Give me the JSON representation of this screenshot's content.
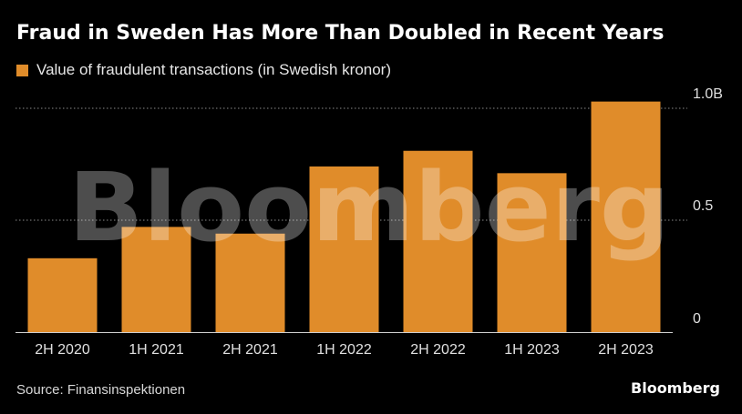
{
  "title": "Fraud in Sweden Has More Than Doubled in Recent Years",
  "source": "Source: Finansinspektionen",
  "brand": "Bloomberg",
  "watermark": "Bloomberg",
  "colors": {
    "bar": "#E08C2A",
    "background": "#000000",
    "grid": "#8a8a8a"
  },
  "chart_data": {
    "type": "bar",
    "title": "Fraud in Sweden Has More Than Doubled in Recent Years",
    "xlabel": "",
    "ylabel": "",
    "categories": [
      "2H 2020",
      "1H 2021",
      "2H 2021",
      "1H 2022",
      "2H 2022",
      "1H 2023",
      "2H 2023"
    ],
    "series": [
      {
        "name": "Value of fraudulent transactions (in Swedish kronor)",
        "values": [
          0.33,
          0.47,
          0.44,
          0.74,
          0.81,
          0.71,
          1.03
        ]
      }
    ],
    "ylim": [
      0,
      1.0
    ],
    "yticks": [
      0,
      0.5,
      1.0
    ],
    "ytick_labels": [
      "0",
      "0.5",
      "1.0B"
    ],
    "grid": true,
    "legend_position": "top-left"
  }
}
